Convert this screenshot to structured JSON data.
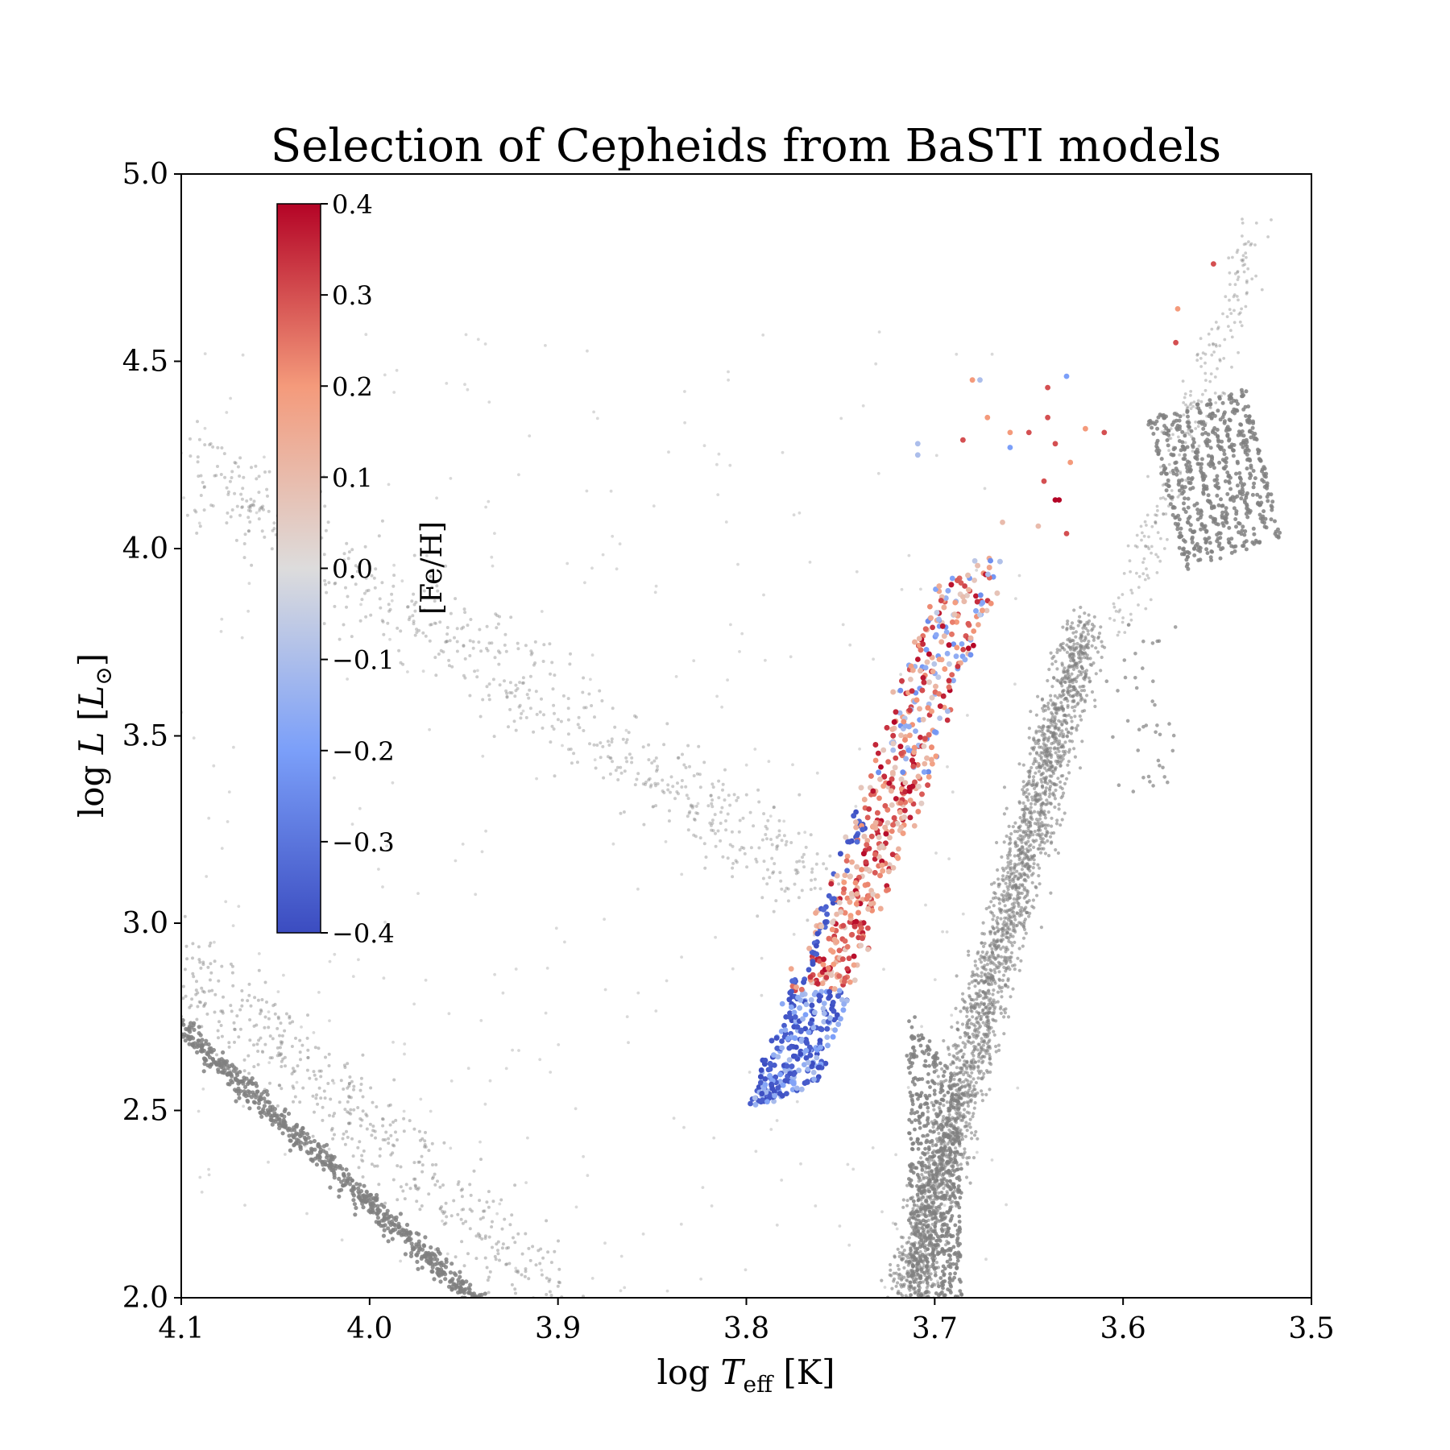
{
  "chart_data": {
    "type": "scatter",
    "title": "Selection of Cepheids from BaSTI models",
    "xlabel": "log T_eff [K]",
    "ylabel": "log L [L_⊙]",
    "xlim": [
      4.1,
      3.5
    ],
    "ylim": [
      2.0,
      5.0
    ],
    "x_inverted": true,
    "xticks": [
      "4.1",
      "4.0",
      "3.9",
      "3.8",
      "3.7",
      "3.6",
      "3.5"
    ],
    "yticks": [
      "2.0",
      "2.5",
      "3.0",
      "3.5",
      "4.0",
      "4.5",
      "5.0"
    ],
    "grid": false,
    "colorbar": {
      "label": "[Fe/H]",
      "cmap": "coolwarm",
      "vmin": -0.4,
      "vmax": 0.4,
      "ticks": [
        "0.4",
        "0.3",
        "0.2",
        "0.1",
        "0.0",
        "−0.1",
        "−0.2",
        "−0.3",
        "−0.4"
      ],
      "placement": "upper-left inset"
    },
    "background_models": {
      "color": "#808080",
      "regions": [
        {
          "name_hint": "main sequence band",
          "x_range": [
            3.95,
            4.1
          ],
          "y_range": [
            2.0,
            2.8
          ]
        },
        {
          "name_hint": "blue loop wing",
          "x_range": [
            3.78,
            4.1
          ],
          "y_range": [
            3.0,
            4.5
          ]
        },
        {
          "name_hint": "red giant branch",
          "x_range": [
            3.6,
            3.73
          ],
          "y_range": [
            2.0,
            3.8
          ]
        },
        {
          "name_hint": "red supergiant tracks",
          "x_range": [
            3.53,
            3.61
          ],
          "y_range": [
            3.8,
            4.8
          ]
        }
      ]
    },
    "cepheids": {
      "band_bottom": [
        3.78,
        2.55
      ],
      "band_top": [
        3.68,
        3.95
      ],
      "band_width": 0.05,
      "bright_points": [
        {
          "x": 3.552,
          "y": 4.76,
          "feh": 0.3
        },
        {
          "x": 3.571,
          "y": 4.64,
          "feh": 0.2
        },
        {
          "x": 3.572,
          "y": 4.55,
          "feh": 0.3
        },
        {
          "x": 3.63,
          "y": 4.46,
          "feh": -0.2
        },
        {
          "x": 3.64,
          "y": 4.43,
          "feh": 0.3
        },
        {
          "x": 3.68,
          "y": 4.45,
          "feh": 0.2
        },
        {
          "x": 3.676,
          "y": 4.45,
          "feh": -0.1
        },
        {
          "x": 3.672,
          "y": 4.35,
          "feh": 0.2
        },
        {
          "x": 3.65,
          "y": 4.31,
          "feh": 0.3
        },
        {
          "x": 3.66,
          "y": 4.31,
          "feh": 0.2
        },
        {
          "x": 3.64,
          "y": 4.35,
          "feh": 0.3
        },
        {
          "x": 3.61,
          "y": 4.31,
          "feh": 0.3
        },
        {
          "x": 3.62,
          "y": 4.32,
          "feh": 0.2
        },
        {
          "x": 3.636,
          "y": 4.28,
          "feh": 0.3
        },
        {
          "x": 3.66,
          "y": 4.27,
          "feh": -0.2
        },
        {
          "x": 3.685,
          "y": 4.29,
          "feh": 0.3
        },
        {
          "x": 3.709,
          "y": 4.28,
          "feh": -0.1
        },
        {
          "x": 3.709,
          "y": 4.25,
          "feh": -0.1
        },
        {
          "x": 3.628,
          "y": 4.23,
          "feh": 0.2
        },
        {
          "x": 3.636,
          "y": 4.13,
          "feh": 0.4
        },
        {
          "x": 3.634,
          "y": 4.13,
          "feh": 0.4
        },
        {
          "x": 3.642,
          "y": 4.18,
          "feh": 0.3
        },
        {
          "x": 3.63,
          "y": 4.04,
          "feh": 0.3
        },
        {
          "x": 3.645,
          "y": 4.06,
          "feh": 0.1
        },
        {
          "x": 3.664,
          "y": 4.07,
          "feh": 0.1
        }
      ]
    }
  }
}
